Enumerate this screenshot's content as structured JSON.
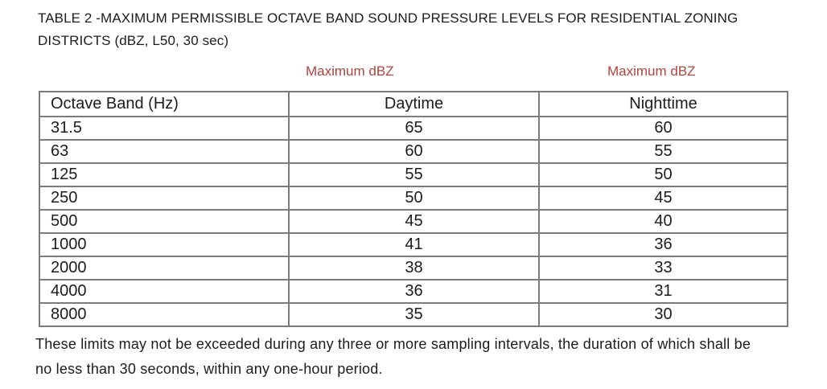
{
  "page": {
    "title_line1": "TABLE 2 -MAXIMUM PERMISSIBLE OCTAVE BAND SOUND PRESSURE LEVELS FOR RESIDENTIAL ZONING",
    "title_line2": "DISTRICTS (dBZ, L50, 30 sec)"
  },
  "column_labels": {
    "daytime_max_label": "Maximum dBZ",
    "nighttime_max_label": "Maximum dBZ",
    "label_color": "#a84642"
  },
  "table": {
    "headers": [
      "Octave Band (Hz)",
      "Daytime",
      "Nighttime"
    ],
    "rows": [
      [
        "31.5",
        "65",
        "60"
      ],
      [
        "63",
        "60",
        "55"
      ],
      [
        "125",
        "55",
        "50"
      ],
      [
        "250",
        "50",
        "45"
      ],
      [
        "500",
        "45",
        "40"
      ],
      [
        "1000",
        "41",
        "36"
      ],
      [
        "2000",
        "38",
        "33"
      ],
      [
        "4000",
        "36",
        "31"
      ],
      [
        "8000",
        "35",
        "30"
      ]
    ],
    "border_color": "#7b7b7b"
  },
  "footnote": {
    "line1": "These limits may not be exceeded during any three or more sampling intervals, the duration of which shall be",
    "line2": "no less than 30 seconds, within any one-hour period."
  }
}
